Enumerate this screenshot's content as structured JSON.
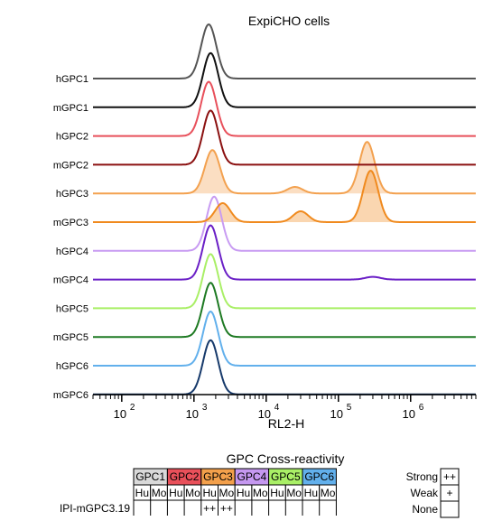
{
  "chart_data": [
    {
      "type": "area",
      "title": "ExpiCHO cells",
      "xlabel": "RL2-H",
      "x_scale": "log10",
      "xlim": [
        40,
        8000000
      ],
      "major_ticks": [
        {
          "base": "10",
          "exp": "2",
          "value": 100
        },
        {
          "base": "10",
          "exp": "3",
          "value": 1000
        },
        {
          "base": "10",
          "exp": "4",
          "value": 10000
        },
        {
          "base": "10",
          "exp": "5",
          "value": 100000
        },
        {
          "base": "10",
          "exp": "6",
          "value": 1000000
        }
      ],
      "grid": false,
      "legend": "none (rows labeled on left)",
      "filled_series": [
        "hGPC3",
        "mGPC3"
      ],
      "series": [
        {
          "name": "hGPC1",
          "color": "#555555",
          "peaks": [
            {
              "x": 1600,
              "height": 1.0
            }
          ]
        },
        {
          "name": "mGPC1",
          "color": "#111111",
          "peaks": [
            {
              "x": 1700,
              "height": 1.0
            }
          ]
        },
        {
          "name": "hGPC2",
          "color": "#e8505b",
          "peaks": [
            {
              "x": 1600,
              "height": 1.0
            }
          ]
        },
        {
          "name": "mGPC2",
          "color": "#8b1010",
          "peaks": [
            {
              "x": 1700,
              "height": 1.0
            }
          ]
        },
        {
          "name": "hGPC3",
          "color": "#f3a14f",
          "peaks": [
            {
              "x": 1800,
              "height": 0.8
            },
            {
              "x": 25000,
              "height": 0.12
            },
            {
              "x": 250000,
              "height": 0.95
            }
          ]
        },
        {
          "name": "mGPC3",
          "color": "#f08a1e",
          "peaks": [
            {
              "x": 2500,
              "height": 0.35
            },
            {
              "x": 30000,
              "height": 0.2
            },
            {
              "x": 280000,
              "height": 0.95
            }
          ]
        },
        {
          "name": "hGPC4",
          "color": "#c89bf2",
          "peaks": [
            {
              "x": 1900,
              "height": 1.0
            }
          ]
        },
        {
          "name": "mGPC4",
          "color": "#6a1fc6",
          "peaks": [
            {
              "x": 1700,
              "height": 1.0
            },
            {
              "x": 300000,
              "height": 0.05
            }
          ]
        },
        {
          "name": "hGPC5",
          "color": "#a9ef66",
          "peaks": [
            {
              "x": 1700,
              "height": 1.0
            }
          ]
        },
        {
          "name": "mGPC5",
          "color": "#1e7a23",
          "peaks": [
            {
              "x": 1700,
              "height": 1.0
            }
          ]
        },
        {
          "name": "hGPC6",
          "color": "#62b0ec",
          "peaks": [
            {
              "x": 1700,
              "height": 1.0
            }
          ]
        },
        {
          "name": "mGPC6",
          "color": "#173a6b",
          "peaks": [
            {
              "x": 1700,
              "height": 1.0
            }
          ]
        }
      ]
    },
    {
      "type": "table",
      "title": "GPC Cross-reactivity",
      "groups": [
        {
          "label": "GPC1",
          "color": "#d9d9d9"
        },
        {
          "label": "GPC2",
          "color": "#e9505a"
        },
        {
          "label": "GPC3",
          "color": "#f3a04b"
        },
        {
          "label": "GPC4",
          "color": "#c598f0"
        },
        {
          "label": "GPC5",
          "color": "#a9ef66"
        },
        {
          "label": "GPC6",
          "color": "#62b0ec"
        }
      ],
      "subcolumns": [
        "Hu",
        "Mo",
        "Hu",
        "Mo",
        "Hu",
        "Mo",
        "Hu",
        "Mo",
        "Hu",
        "Mo",
        "Hu",
        "Mo"
      ],
      "rows": [
        {
          "label": "IPI-mGPC3.19",
          "values": [
            "",
            "",
            "",
            "",
            "++",
            "++",
            "",
            "",
            "",
            "",
            "",
            ""
          ]
        }
      ],
      "legend": [
        {
          "label": "Strong",
          "symbol": "++"
        },
        {
          "label": "Weak",
          "symbol": "+"
        },
        {
          "label": "None",
          "symbol": ""
        }
      ]
    }
  ]
}
